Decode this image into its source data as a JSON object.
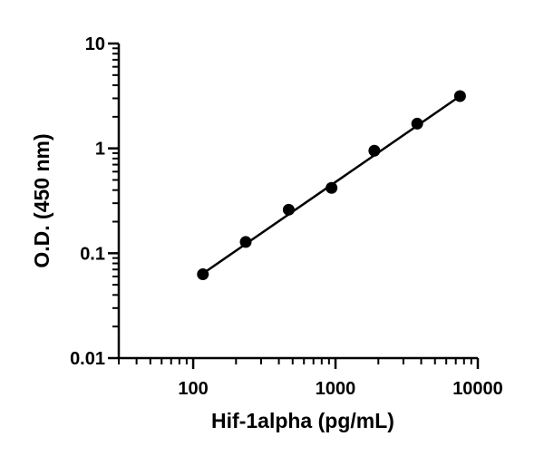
{
  "chart_data": {
    "type": "scatter",
    "title": "",
    "xlabel": "Hif-1alpha (pg/mL)",
    "ylabel": "O.D. (450 nm)",
    "xscale": "log",
    "yscale": "log",
    "xlim": [
      30,
      10000
    ],
    "ylim": [
      0.01,
      10
    ],
    "x_ticks": [
      100,
      1000,
      10000
    ],
    "x_tick_labels": [
      "100",
      "1000",
      "10000"
    ],
    "y_ticks": [
      0.01,
      0.1,
      1,
      10
    ],
    "y_tick_labels": [
      "0.01",
      "0.1",
      "1",
      "10"
    ],
    "grid": false,
    "legend": "none",
    "series": [
      {
        "x": [
          117,
          234,
          469,
          938,
          1875,
          3750,
          7500
        ],
        "y": [
          0.063,
          0.128,
          0.26,
          0.42,
          0.95,
          1.72,
          3.15
        ]
      }
    ],
    "fit_line": {
      "x": [
        117,
        7500
      ],
      "y": [
        0.064,
        3.15
      ]
    },
    "colors": {
      "points": "#000000",
      "line": "#000000"
    }
  }
}
